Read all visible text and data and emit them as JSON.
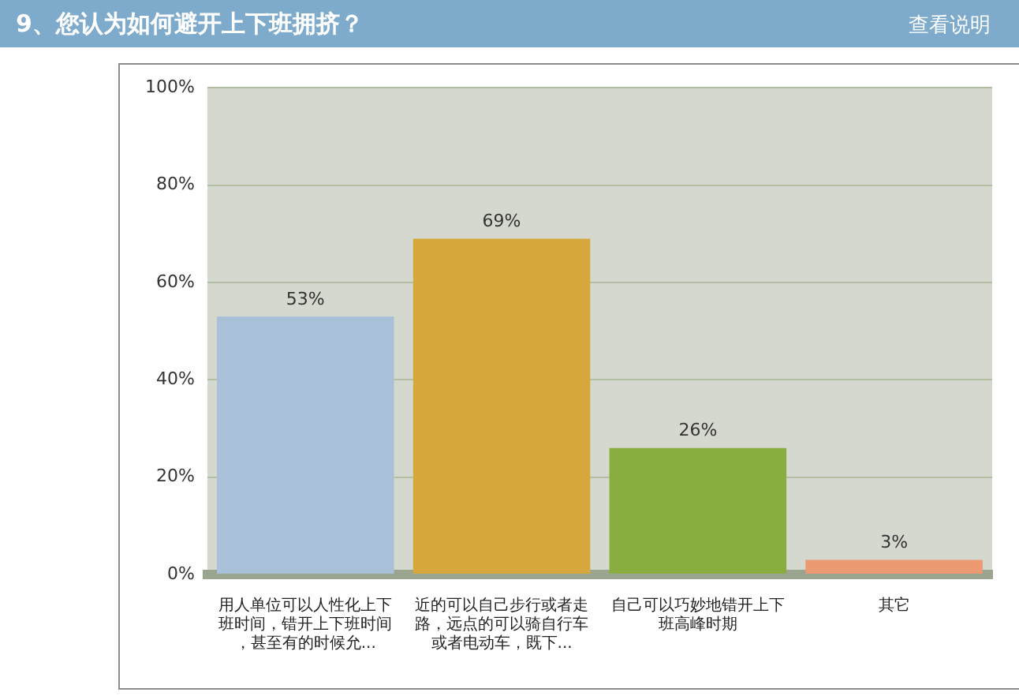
{
  "chart_data": {
    "type": "bar",
    "title": "9、您认为如何避开上下班拥挤？",
    "annotations": [
      "查看说明"
    ],
    "categories": [
      "用人单位可以人性化上下班时间，错开上下班时间，甚至有的时候允...",
      "近的可以自己步行或者走路，远点的可以骑自行车或者电动车，既下...",
      "自己可以巧妙地错开上下班高峰时期",
      "其它"
    ],
    "values": [
      53,
      69,
      26,
      3
    ],
    "value_labels": [
      "53%",
      "69%",
      "26%",
      "3%"
    ],
    "colors": [
      "#a8c0d8",
      "#d6a83c",
      "#8aad40",
      "#eb9a72"
    ],
    "ylim": [
      0,
      100
    ],
    "yticks": [
      {
        "value": 0,
        "label": "0%"
      },
      {
        "value": 20,
        "label": "20%"
      },
      {
        "value": 40,
        "label": "40%"
      },
      {
        "value": 60,
        "label": "60%"
      },
      {
        "value": 80,
        "label": "80%"
      },
      {
        "value": 100,
        "label": "100%"
      }
    ],
    "grid": "y"
  }
}
